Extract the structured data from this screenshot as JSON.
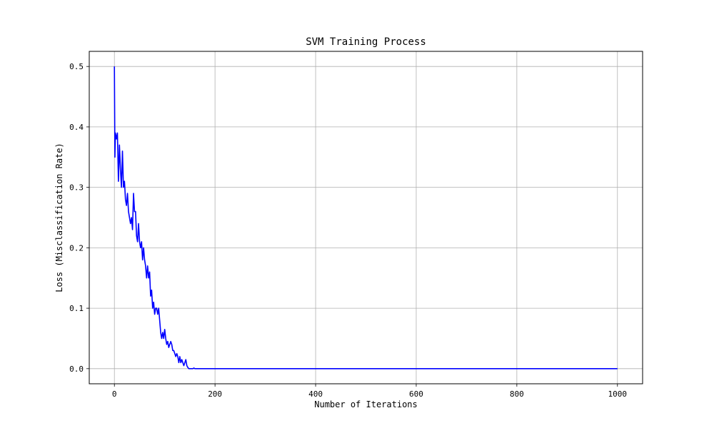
{
  "chart_data": {
    "type": "line",
    "title": "SVM Training Process",
    "xlabel": "Number of Iterations",
    "ylabel": "Loss (Misclassification Rate)",
    "xlim": [
      -50,
      1050
    ],
    "ylim": [
      -0.025,
      0.525
    ],
    "xticks": [
      0,
      200,
      400,
      600,
      800,
      1000
    ],
    "yticks": [
      0.0,
      0.1,
      0.2,
      0.3,
      0.4,
      0.5
    ],
    "xtick_labels": [
      "0",
      "200",
      "400",
      "600",
      "800",
      "1000"
    ],
    "ytick_labels": [
      "0.0",
      "0.1",
      "0.2",
      "0.3",
      "0.4",
      "0.5"
    ],
    "grid": true,
    "legend": false,
    "series": [
      {
        "color": "#0000ff",
        "x": [
          0,
          1,
          2,
          4,
          6,
          8,
          10,
          12,
          14,
          16,
          18,
          20,
          22,
          24,
          26,
          28,
          30,
          32,
          34,
          36,
          38,
          40,
          42,
          44,
          46,
          48,
          50,
          52,
          54,
          56,
          58,
          60,
          62,
          64,
          66,
          68,
          70,
          72,
          74,
          76,
          78,
          80,
          82,
          84,
          86,
          88,
          90,
          92,
          94,
          96,
          98,
          100,
          102,
          104,
          106,
          108,
          110,
          112,
          114,
          116,
          118,
          120,
          122,
          124,
          126,
          128,
          130,
          132,
          134,
          136,
          138,
          140,
          142,
          144,
          146,
          148,
          150,
          152,
          154,
          156,
          158,
          160,
          200,
          400,
          600,
          800,
          1000
        ],
        "y": [
          0.5,
          0.35,
          0.39,
          0.38,
          0.39,
          0.31,
          0.37,
          0.33,
          0.3,
          0.36,
          0.3,
          0.31,
          0.28,
          0.27,
          0.29,
          0.26,
          0.25,
          0.24,
          0.25,
          0.23,
          0.29,
          0.26,
          0.26,
          0.22,
          0.21,
          0.24,
          0.21,
          0.2,
          0.21,
          0.18,
          0.2,
          0.18,
          0.17,
          0.15,
          0.17,
          0.15,
          0.16,
          0.12,
          0.13,
          0.1,
          0.11,
          0.09,
          0.1,
          0.1,
          0.09,
          0.1,
          0.08,
          0.06,
          0.05,
          0.06,
          0.05,
          0.065,
          0.05,
          0.04,
          0.045,
          0.035,
          0.04,
          0.045,
          0.04,
          0.03,
          0.03,
          0.025,
          0.02,
          0.025,
          0.02,
          0.01,
          0.02,
          0.01,
          0.015,
          0.01,
          0.005,
          0.01,
          0.015,
          0.005,
          0.002,
          0.0,
          0.0,
          0.0,
          0.0,
          0.0,
          0.001,
          0.0,
          0.0,
          0.0,
          0.0,
          0.0,
          0.0
        ]
      }
    ]
  }
}
